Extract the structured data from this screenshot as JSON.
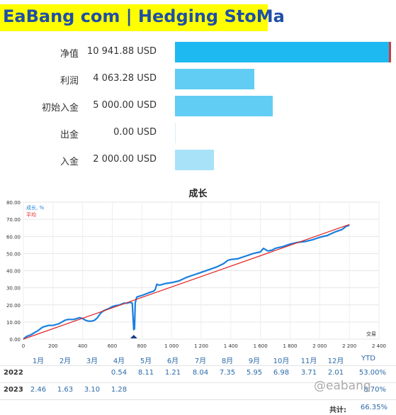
{
  "banner": {
    "text": "EaBang com | Hedging StoMa"
  },
  "summary": [
    {
      "label": "净值",
      "value": "10 941.88 USD",
      "amount": 10941.88,
      "color": "#1eb9f0"
    },
    {
      "label": "利润",
      "value": "4 063.28 USD",
      "amount": 4063.28,
      "color": "#62cdf4"
    },
    {
      "label": "初始入金",
      "value": "5 000.00 USD",
      "amount": 5000.0,
      "color": "#62cdf4"
    },
    {
      "label": "出金",
      "value": "0.00 USD",
      "amount": 0.0,
      "color": "#a8e2f8"
    },
    {
      "label": "入金",
      "value": "2 000.00 USD",
      "amount": 2000.0,
      "color": "#a8e2f8"
    }
  ],
  "chart_data": {
    "type": "line",
    "title": "成长",
    "xlabel": "交易",
    "ylabel": "",
    "xlim": [
      0,
      2400
    ],
    "ylim": [
      0,
      80
    ],
    "x_ticks": [
      "0",
      "200",
      "400",
      "600",
      "800",
      "1 000",
      "1 200",
      "1 400",
      "1 600",
      "1 800",
      "2 000",
      "2 200",
      "2 400"
    ],
    "y_ticks": [
      "0.00",
      "10.00",
      "20.00",
      "30.00",
      "40.00",
      "50.00",
      "60.00",
      "70.00",
      "80.00"
    ],
    "grid": true,
    "legend_position": "top-left",
    "series": [
      {
        "name": "成长, %",
        "color": "#1a7fe0",
        "x": [
          0,
          20,
          50,
          80,
          100,
          130,
          150,
          170,
          200,
          220,
          240,
          260,
          280,
          300,
          340,
          380,
          400,
          420,
          440,
          460,
          480,
          500,
          520,
          540,
          580,
          600,
          620,
          650,
          680,
          700,
          720,
          735,
          745,
          750,
          755,
          760,
          765,
          780,
          800,
          830,
          860,
          880,
          890,
          900,
          920,
          940,
          960,
          1000,
          1050,
          1100,
          1150,
          1200,
          1250,
          1300,
          1350,
          1380,
          1400,
          1450,
          1500,
          1550,
          1600,
          1620,
          1650,
          1680,
          1700,
          1750,
          1800,
          1850,
          1900,
          1950,
          2000,
          2050,
          2100,
          2150,
          2180,
          2200
        ],
        "values": [
          0,
          1.5,
          2.5,
          4.0,
          5.0,
          7.0,
          7.5,
          8.0,
          8.0,
          8.5,
          9.0,
          10.0,
          11.0,
          11.5,
          11.5,
          12.5,
          12.0,
          11.0,
          10.5,
          10.5,
          11.0,
          12.5,
          15.0,
          16.5,
          18.0,
          19.0,
          19.5,
          20.0,
          21.0,
          21.0,
          21.5,
          21.0,
          5.5,
          6.0,
          21.0,
          23.0,
          24.5,
          25.0,
          25.5,
          26.5,
          27.5,
          28.0,
          29.0,
          32.0,
          31.5,
          32.0,
          32.5,
          33.0,
          34.0,
          36.0,
          37.5,
          39.0,
          40.5,
          42.0,
          44.0,
          46.0,
          46.5,
          47.0,
          48.5,
          50.0,
          51.0,
          53.0,
          51.5,
          52.0,
          53.0,
          54.0,
          55.5,
          56.5,
          57.0,
          58.0,
          59.5,
          60.5,
          62.5,
          64.0,
          66.0,
          66.5
        ]
      },
      {
        "name": "平均",
        "color": "#e02020",
        "x": [
          0,
          2200
        ],
        "values": [
          0,
          67
        ]
      }
    ]
  },
  "yearly_table": {
    "months": [
      "1月",
      "2月",
      "3月",
      "4月",
      "5月",
      "6月",
      "7月",
      "8月",
      "9月",
      "10月",
      "11月",
      "12月"
    ],
    "ytd_label": "YTD",
    "rows": [
      {
        "year": "2022",
        "values": [
          "",
          "",
          "",
          "0.54",
          "8.11",
          "1.21",
          "8.04",
          "7.35",
          "5.95",
          "6.98",
          "3.71",
          "2.01"
        ],
        "ytd": "53.00%"
      },
      {
        "year": "2023",
        "values": [
          "2.46",
          "1.63",
          "3.10",
          "1.28",
          "",
          "",
          "",
          "",
          "",
          "",
          "",
          ""
        ],
        "ytd": "8.70%"
      }
    ],
    "total_label": "共计:",
    "total_value": "66.35%"
  },
  "watermark": "@eabang"
}
